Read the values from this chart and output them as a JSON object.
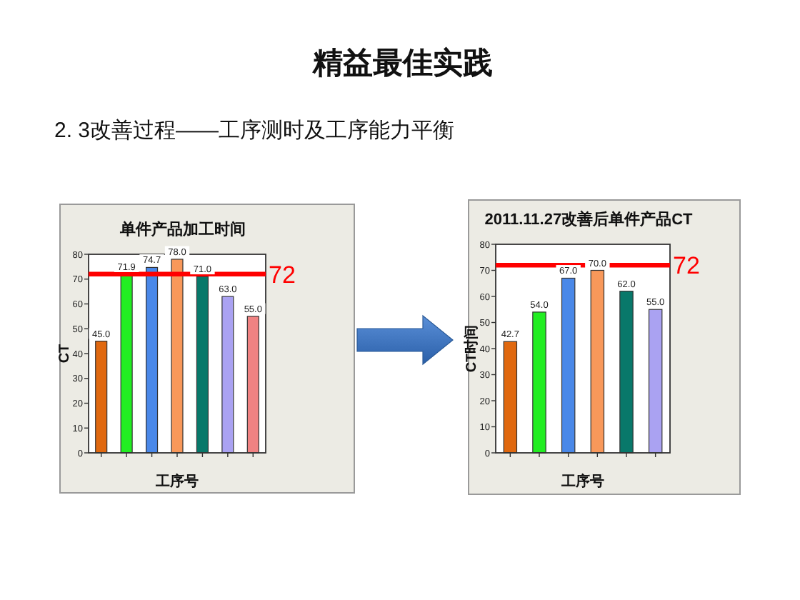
{
  "chart_data": [
    {
      "type": "other",
      "title": "精益最佳实践",
      "subtitle": "2. 3改善过程——工序测时及工序能力平衡"
    },
    {
      "type": "bar",
      "title": "单件产品加工时间",
      "xlabel": "工序号",
      "ylabel": "CT",
      "categories": [
        null,
        null,
        null,
        null,
        null,
        null,
        null
      ],
      "values": [
        45.0,
        71.9,
        74.7,
        78.0,
        71.0,
        63.0,
        55.0
      ],
      "value_labels": [
        "45.0",
        "71.9",
        "74.7",
        "78.0",
        "71.0",
        "63.0",
        "55.0"
      ],
      "colors": [
        "#e0680f",
        "#22ee22",
        "#4a88e8",
        "#f8985a",
        "#08786a",
        "#aaa2f2",
        "#f08282"
      ],
      "ylim": [
        0,
        80
      ],
      "yticks": [
        0,
        10,
        20,
        30,
        40,
        50,
        60,
        70,
        80
      ],
      "ref_lines": [
        {
          "axis": "y",
          "value": 72,
          "label": "72",
          "color": "#ff0000"
        }
      ]
    },
    {
      "type": "bar",
      "title": "2011.11.27改善后单件产品CT",
      "xlabel": "工序号",
      "ylabel": "CT时间",
      "categories": [
        null,
        null,
        null,
        null,
        null,
        null
      ],
      "values": [
        42.7,
        54.0,
        67.0,
        70.0,
        62.0,
        55.0
      ],
      "value_labels": [
        "42.7",
        "54.0",
        "67.0",
        "70.0",
        "62.0",
        "55.0"
      ],
      "colors": [
        "#e0680f",
        "#22ee22",
        "#4a88e8",
        "#f8985a",
        "#08786a",
        "#aaa2f2"
      ],
      "ylim": [
        0,
        80
      ],
      "yticks": [
        0,
        10,
        20,
        30,
        40,
        50,
        60,
        70,
        80
      ],
      "ref_lines": [
        {
          "axis": "y",
          "value": 72,
          "label": "72",
          "color": "#ff0000"
        }
      ]
    }
  ]
}
